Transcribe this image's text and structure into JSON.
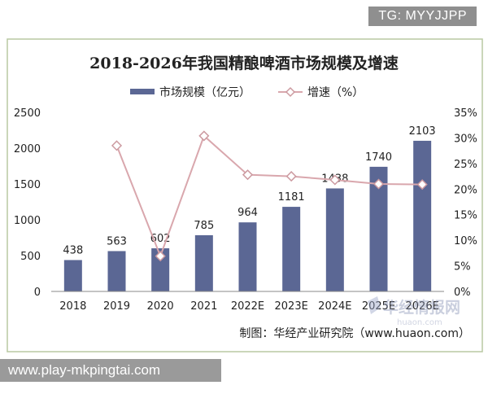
{
  "watermark_tag": "TG: MYYJJPP",
  "footer_url": "www.play-mkpingtai.com",
  "source_note": "制图：华经产业研究院（www.huaon.com）",
  "site_watermark": {
    "main": "华经情报网",
    "sub": "huaon.com"
  },
  "colors": {
    "bar": "#5b6794",
    "line": "#d9a7ad",
    "marker_fill": "#ffffff",
    "marker_stroke": "#cc9aa0",
    "frame": "#b8c9a2",
    "text": "#222222"
  },
  "chart_data": {
    "type": "bar",
    "title": "2018-2026年我国精酿啤酒市场规模及增速",
    "categories": [
      "2018",
      "2019",
      "2020",
      "2021",
      "2022E",
      "2023E",
      "2024E",
      "2025E",
      "2026E"
    ],
    "series": [
      {
        "name": "市场规模（亿元）",
        "type": "bar",
        "axis": "left",
        "values": [
          438,
          563,
          602,
          785,
          964,
          1181,
          1438,
          1740,
          2103
        ],
        "data_labels": [
          "438",
          "563",
          "602",
          "785",
          "964",
          "1181",
          "1438",
          "1740",
          "2103"
        ]
      },
      {
        "name": "增速（%）",
        "type": "line",
        "axis": "right",
        "values": [
          null,
          28.5,
          6.9,
          30.4,
          22.8,
          22.5,
          21.8,
          21.0,
          20.9
        ]
      }
    ],
    "y_left": {
      "ylim": [
        0,
        2500
      ],
      "ticks": [
        "0",
        "500",
        "1000",
        "1500",
        "2000",
        "2500"
      ]
    },
    "y_right": {
      "ylim": [
        0,
        35
      ],
      "ticks": [
        "0%",
        "5%",
        "10%",
        "15%",
        "20%",
        "25%",
        "30%",
        "35%"
      ]
    },
    "legend_position": "top-center",
    "grid": false
  }
}
